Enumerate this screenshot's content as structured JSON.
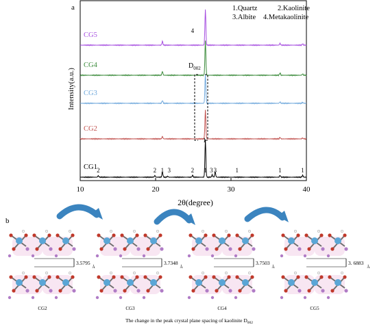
{
  "panel_a": {
    "label": "a",
    "legend": [
      "1.Quartz",
      "2.Kaolinite",
      "3.Albite",
      "4.Metakaolinite"
    ],
    "annotation": "D002",
    "chart_data": {
      "type": "line",
      "xlabel": "2θ(degree)",
      "ylabel": "Intensity(a.u.)",
      "xlim": [
        10,
        40
      ],
      "xticks": [
        10,
        20,
        30,
        40
      ],
      "series": [
        {
          "name": "CG1",
          "color": "#000000",
          "baseline": 0.0,
          "peaks": [
            [
              12.4,
              0.03
            ],
            [
              19.9,
              0.035
            ],
            [
              20.9,
              0.11
            ],
            [
              21.6,
              0.02
            ],
            [
              24.9,
              0.04
            ],
            [
              26.6,
              0.78
            ],
            [
              27.5,
              0.05
            ],
            [
              27.9,
              0.11
            ],
            [
              36.5,
              0.04
            ],
            [
              39.5,
              0.04
            ]
          ],
          "peak_labels": [
            {
              "x": 12.4,
              "t": "2"
            },
            {
              "x": 19.9,
              "t": "2"
            },
            {
              "x": 20.9,
              "t": "1"
            },
            {
              "x": 21.8,
              "t": "3"
            },
            {
              "x": 24.9,
              "t": "2"
            },
            {
              "x": 26.6,
              "t": "1"
            },
            {
              "x": 27.4,
              "t": "3"
            },
            {
              "x": 27.9,
              "t": "3"
            },
            {
              "x": 30.8,
              "t": "1"
            },
            {
              "x": 36.5,
              "t": "1"
            },
            {
              "x": 39.5,
              "t": "1"
            }
          ]
        },
        {
          "name": "CG2",
          "color": "#c0504d",
          "baseline": 1.0,
          "peaks": [
            [
              20.9,
              0.05
            ],
            [
              26.6,
              0.6
            ],
            [
              36.5,
              0.03
            ],
            [
              39.5,
              0.02
            ]
          ],
          "peak_labels": []
        },
        {
          "name": "CG3",
          "color": "#6fa8dc",
          "baseline": 2.0,
          "peaks": [
            [
              20.9,
              0.06
            ],
            [
              26.6,
              0.6
            ],
            [
              36.5,
              0.03
            ],
            [
              39.5,
              0.02
            ]
          ],
          "peak_labels": []
        },
        {
          "name": "CG4",
          "color": "#3a8a3a",
          "baseline": 3.0,
          "peaks": [
            [
              20.9,
              0.08
            ],
            [
              26.6,
              0.72
            ],
            [
              36.5,
              0.05
            ],
            [
              39.5,
              0.03
            ]
          ],
          "peak_labels": []
        },
        {
          "name": "CG5",
          "color": "#a64ee0",
          "baseline": 4.0,
          "peaks": [
            [
              20.9,
              0.08
            ],
            [
              26.6,
              0.75
            ],
            [
              36.5,
              0.04
            ],
            [
              39.5,
              0.03
            ]
          ],
          "peak_labels": [
            {
              "x": 24.9,
              "t": "4"
            }
          ]
        }
      ]
    },
    "bracket_label": "1"
  },
  "panel_b": {
    "label": "b",
    "structures": [
      {
        "name": "CG2",
        "spacing": "3.5795",
        "unit": "Å"
      },
      {
        "name": "CG3",
        "spacing": "3.7348",
        "unit": "Å"
      },
      {
        "name": "CG4",
        "spacing": "3.7503",
        "unit": "Å"
      },
      {
        "name": "CG5",
        "spacing": "3. 6883",
        "unit": "Å"
      }
    ],
    "caption": "The change in the peak crystal plane spacing of kaolinite D002"
  }
}
